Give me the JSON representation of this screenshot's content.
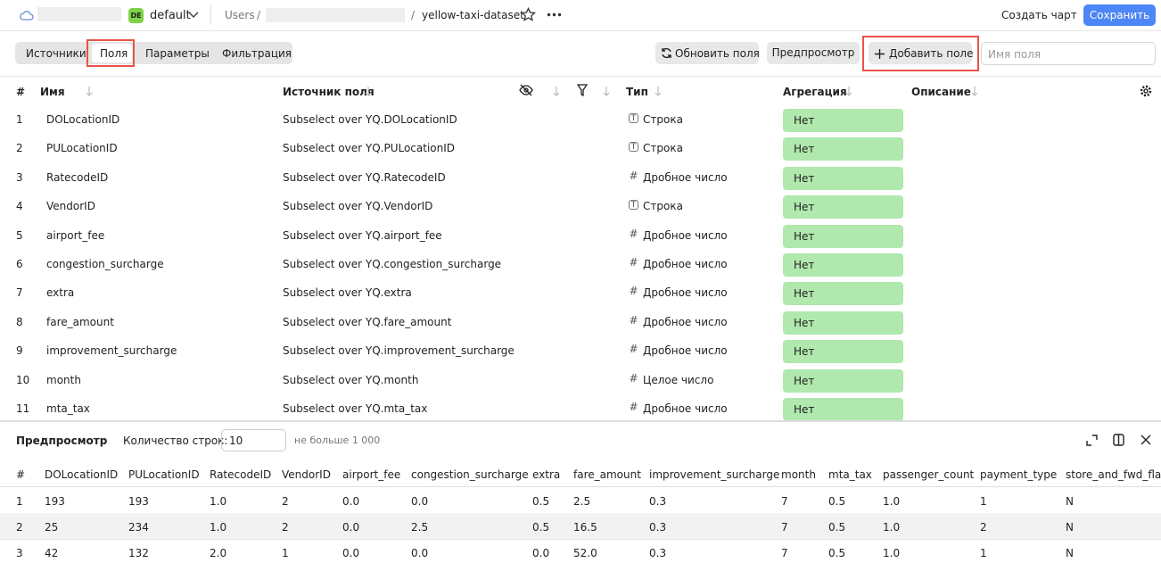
{
  "header": {
    "badge": "DE",
    "workspace": "default",
    "breadcrumb": "Users",
    "separator": "/",
    "dataset": "yellow-taxi-dataset",
    "create_chart": "Создать чарт",
    "save": "Сохранить"
  },
  "toolbar": {
    "tabs": [
      "Источники",
      "Поля",
      "Параметры",
      "Фильтрация"
    ],
    "refresh": "Обновить поля",
    "preview": "Предпросмотр",
    "add_field": "Добавить поле",
    "search_placeholder": "Имя поля"
  },
  "fields_table": {
    "columns": {
      "num": "#",
      "name": "Имя",
      "source": "Источник поля",
      "type": "Тип",
      "aggregation": "Агрегация",
      "description": "Описание"
    },
    "rows": [
      {
        "num": "1",
        "name": "DOLocationID",
        "source": "Subselect over YQ.DOLocationID",
        "type_icon": "T",
        "type": "Строка",
        "aggregation": "Нет"
      },
      {
        "num": "2",
        "name": "PULocationID",
        "source": "Subselect over YQ.PULocationID",
        "type_icon": "T",
        "type": "Строка",
        "aggregation": "Нет"
      },
      {
        "num": "3",
        "name": "RatecodeID",
        "source": "Subselect over YQ.RatecodeID",
        "type_icon": "#",
        "type": "Дробное число",
        "aggregation": "Нет"
      },
      {
        "num": "4",
        "name": "VendorID",
        "source": "Subselect over YQ.VendorID",
        "type_icon": "T",
        "type": "Строка",
        "aggregation": "Нет"
      },
      {
        "num": "5",
        "name": "airport_fee",
        "source": "Subselect over YQ.airport_fee",
        "type_icon": "#",
        "type": "Дробное число",
        "aggregation": "Нет"
      },
      {
        "num": "6",
        "name": "congestion_surcharge",
        "source": "Subselect over YQ.congestion_surcharge",
        "type_icon": "#",
        "type": "Дробное число",
        "aggregation": "Нет"
      },
      {
        "num": "7",
        "name": "extra",
        "source": "Subselect over YQ.extra",
        "type_icon": "#",
        "type": "Дробное число",
        "aggregation": "Нет"
      },
      {
        "num": "8",
        "name": "fare_amount",
        "source": "Subselect over YQ.fare_amount",
        "type_icon": "#",
        "type": "Дробное число",
        "aggregation": "Нет"
      },
      {
        "num": "9",
        "name": "improvement_surcharge",
        "source": "Subselect over YQ.improvement_surcharge",
        "type_icon": "#",
        "type": "Дробное число",
        "aggregation": "Нет"
      },
      {
        "num": "10",
        "name": "month",
        "source": "Subselect over YQ.month",
        "type_icon": "#",
        "type": "Целое число",
        "aggregation": "Нет"
      },
      {
        "num": "11",
        "name": "mta_tax",
        "source": "Subselect over YQ.mta_tax",
        "type_icon": "#",
        "type": "Дробное число",
        "aggregation": "Нет"
      }
    ]
  },
  "preview": {
    "title": "Предпросмотр",
    "rows_label": "Количество строк:",
    "rows_value": "10",
    "rows_hint": "не больше 1 000",
    "columns": [
      "#",
      "DOLocationID",
      "PULocationID",
      "RatecodeID",
      "VendorID",
      "airport_fee",
      "congestion_surcharge",
      "extra",
      "fare_amount",
      "improvement_surcharge",
      "month",
      "mta_tax",
      "passenger_count",
      "payment_type",
      "store_and_fwd_flag"
    ],
    "rows": [
      [
        "1",
        "193",
        "193",
        "1.0",
        "2",
        "0.0",
        "0.0",
        "0.5",
        "2.5",
        "0.3",
        "7",
        "0.5",
        "1.0",
        "1",
        "N"
      ],
      [
        "2",
        "25",
        "234",
        "1.0",
        "2",
        "0.0",
        "2.5",
        "0.5",
        "16.5",
        "0.3",
        "7",
        "0.5",
        "1.0",
        "2",
        "N"
      ],
      [
        "3",
        "42",
        "132",
        "2.0",
        "1",
        "0.0",
        "0.0",
        "0.0",
        "52.0",
        "0.3",
        "7",
        "0.5",
        "1.0",
        "1",
        "N"
      ]
    ]
  }
}
